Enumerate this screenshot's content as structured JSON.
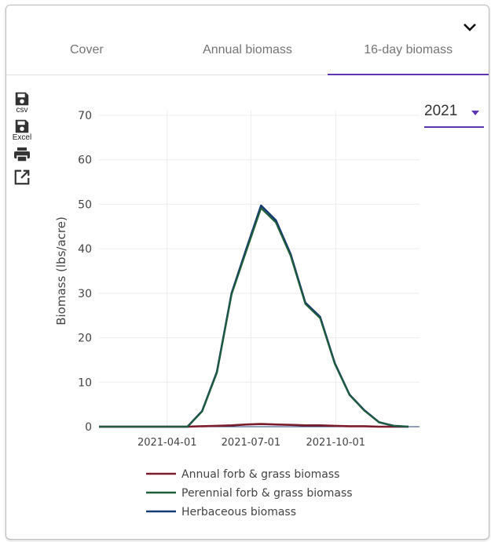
{
  "tabs": [
    {
      "label": "Cover"
    },
    {
      "label": "Annual biomass"
    },
    {
      "label": "16-day biomass"
    }
  ],
  "active_tab": "16-day biomass",
  "tools": [
    {
      "label": "csv",
      "icon": "save-icon"
    },
    {
      "label": "Excel",
      "icon": "save-icon"
    },
    {
      "label": "",
      "icon": "print-icon"
    },
    {
      "label": "",
      "icon": "open-in-new-icon"
    }
  ],
  "year_select": {
    "value": "2021"
  },
  "colors": {
    "accent": "#5e35b1",
    "annual": "#7b1c2c",
    "perennial": "#1e5e38",
    "herbaceous": "#163a72"
  },
  "chart_data": {
    "type": "line",
    "ylabel": "Biomass (lbs/acre)",
    "xlabel": "",
    "ylim": [
      0,
      70
    ],
    "yticks": [
      0,
      10,
      20,
      30,
      40,
      50,
      60,
      70
    ],
    "xlim": [
      "2021-01-17",
      "2021-12-31"
    ],
    "xticks": [
      "2021-04-01",
      "2021-07-01",
      "2021-10-01"
    ],
    "grid": true,
    "legend_position": "bottom",
    "x": [
      "2021-01-17",
      "2021-02-02",
      "2021-02-18",
      "2021-03-06",
      "2021-03-22",
      "2021-04-07",
      "2021-04-23",
      "2021-05-09",
      "2021-05-25",
      "2021-06-10",
      "2021-06-26",
      "2021-07-12",
      "2021-07-28",
      "2021-08-13",
      "2021-08-29",
      "2021-09-14",
      "2021-09-30",
      "2021-10-16",
      "2021-11-01",
      "2021-11-17",
      "2021-12-03",
      "2021-12-19"
    ],
    "series": [
      {
        "name": "Annual forb & grass biomass",
        "values": [
          0,
          0,
          0,
          0,
          0,
          0,
          0,
          0.1,
          0.2,
          0.3,
          0.5,
          0.6,
          0.5,
          0.4,
          0.3,
          0.3,
          0.2,
          0.1,
          0.1,
          0,
          0,
          0
        ]
      },
      {
        "name": "Perennial forb & grass biomass",
        "values": [
          0,
          0,
          0,
          0,
          0,
          0,
          0,
          3.4,
          12.1,
          29.7,
          39.5,
          49.1,
          45.9,
          38.4,
          27.6,
          24.4,
          14.1,
          7.1,
          3.6,
          1,
          0.2,
          0
        ]
      },
      {
        "name": "Herbaceous biomass",
        "values": [
          0,
          0,
          0,
          0,
          0,
          0,
          0,
          3.5,
          12.3,
          30,
          40,
          49.7,
          46.4,
          38.8,
          27.9,
          24.7,
          14.3,
          7.2,
          3.7,
          1,
          0.2,
          0
        ]
      }
    ]
  }
}
